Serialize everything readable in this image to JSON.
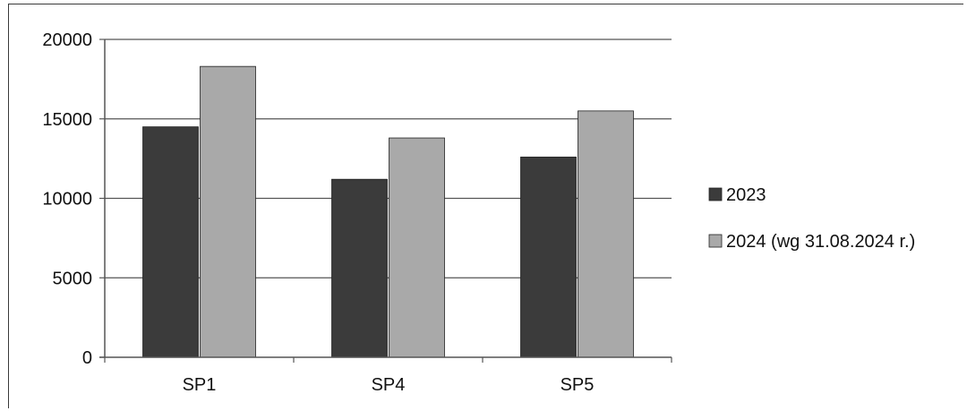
{
  "chart_data": {
    "type": "bar",
    "title": "",
    "xlabel": "",
    "ylabel": "",
    "categories": [
      "SP1",
      "SP4",
      "SP5"
    ],
    "series": [
      {
        "name": "2023",
        "color": "#3b3b3b",
        "values": [
          14500,
          11200,
          12600
        ]
      },
      {
        "name": "2024 (wg 31.08.2024 r.)",
        "color": "#a9a9a9",
        "values": [
          18300,
          13800,
          15500
        ]
      }
    ],
    "ylim": [
      0,
      20000
    ],
    "yticks": [
      "0",
      "5000",
      "10000",
      "15000",
      "20000"
    ],
    "grid": true,
    "legend": "right"
  }
}
